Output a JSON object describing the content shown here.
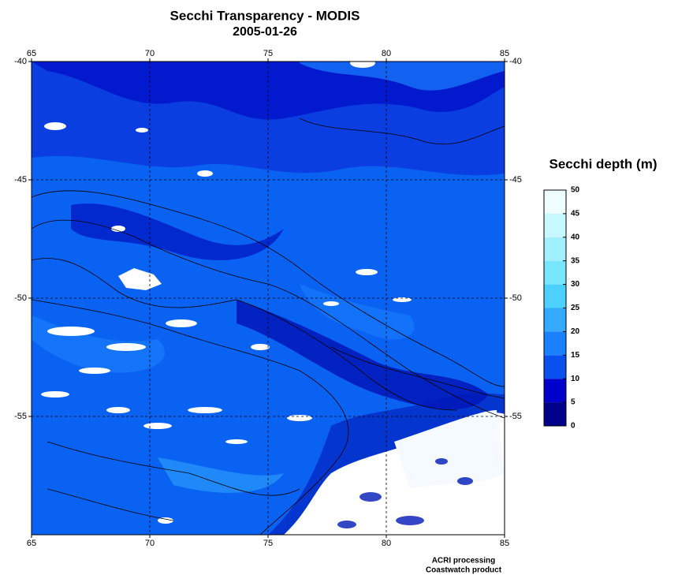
{
  "chart_data": {
    "type": "map",
    "title": "Secchi Transparency - MODIS",
    "subtitle": "2005-01-26",
    "xlim": [
      65,
      85
    ],
    "xticks": [
      65,
      70,
      75,
      80,
      85
    ],
    "ylim": [
      -60,
      -40
    ],
    "yticks": [
      -55,
      -50,
      -45,
      -40
    ],
    "grid": true,
    "colorbar": {
      "label": "Secchi depth (m)",
      "lim": [
        0,
        50
      ],
      "ticks": [
        0,
        5,
        10,
        15,
        20,
        25,
        30,
        35,
        40,
        45,
        50
      ],
      "colors": [
        "#000088",
        "#0000cc",
        "#0a50ee",
        "#1a80ff",
        "#33aaff",
        "#4cd0ff",
        "#77e6ff",
        "#a0f0ff",
        "#c8f8ff",
        "#eefeff"
      ]
    },
    "credits": [
      "ACRI processing",
      "Coastwatch product"
    ]
  }
}
